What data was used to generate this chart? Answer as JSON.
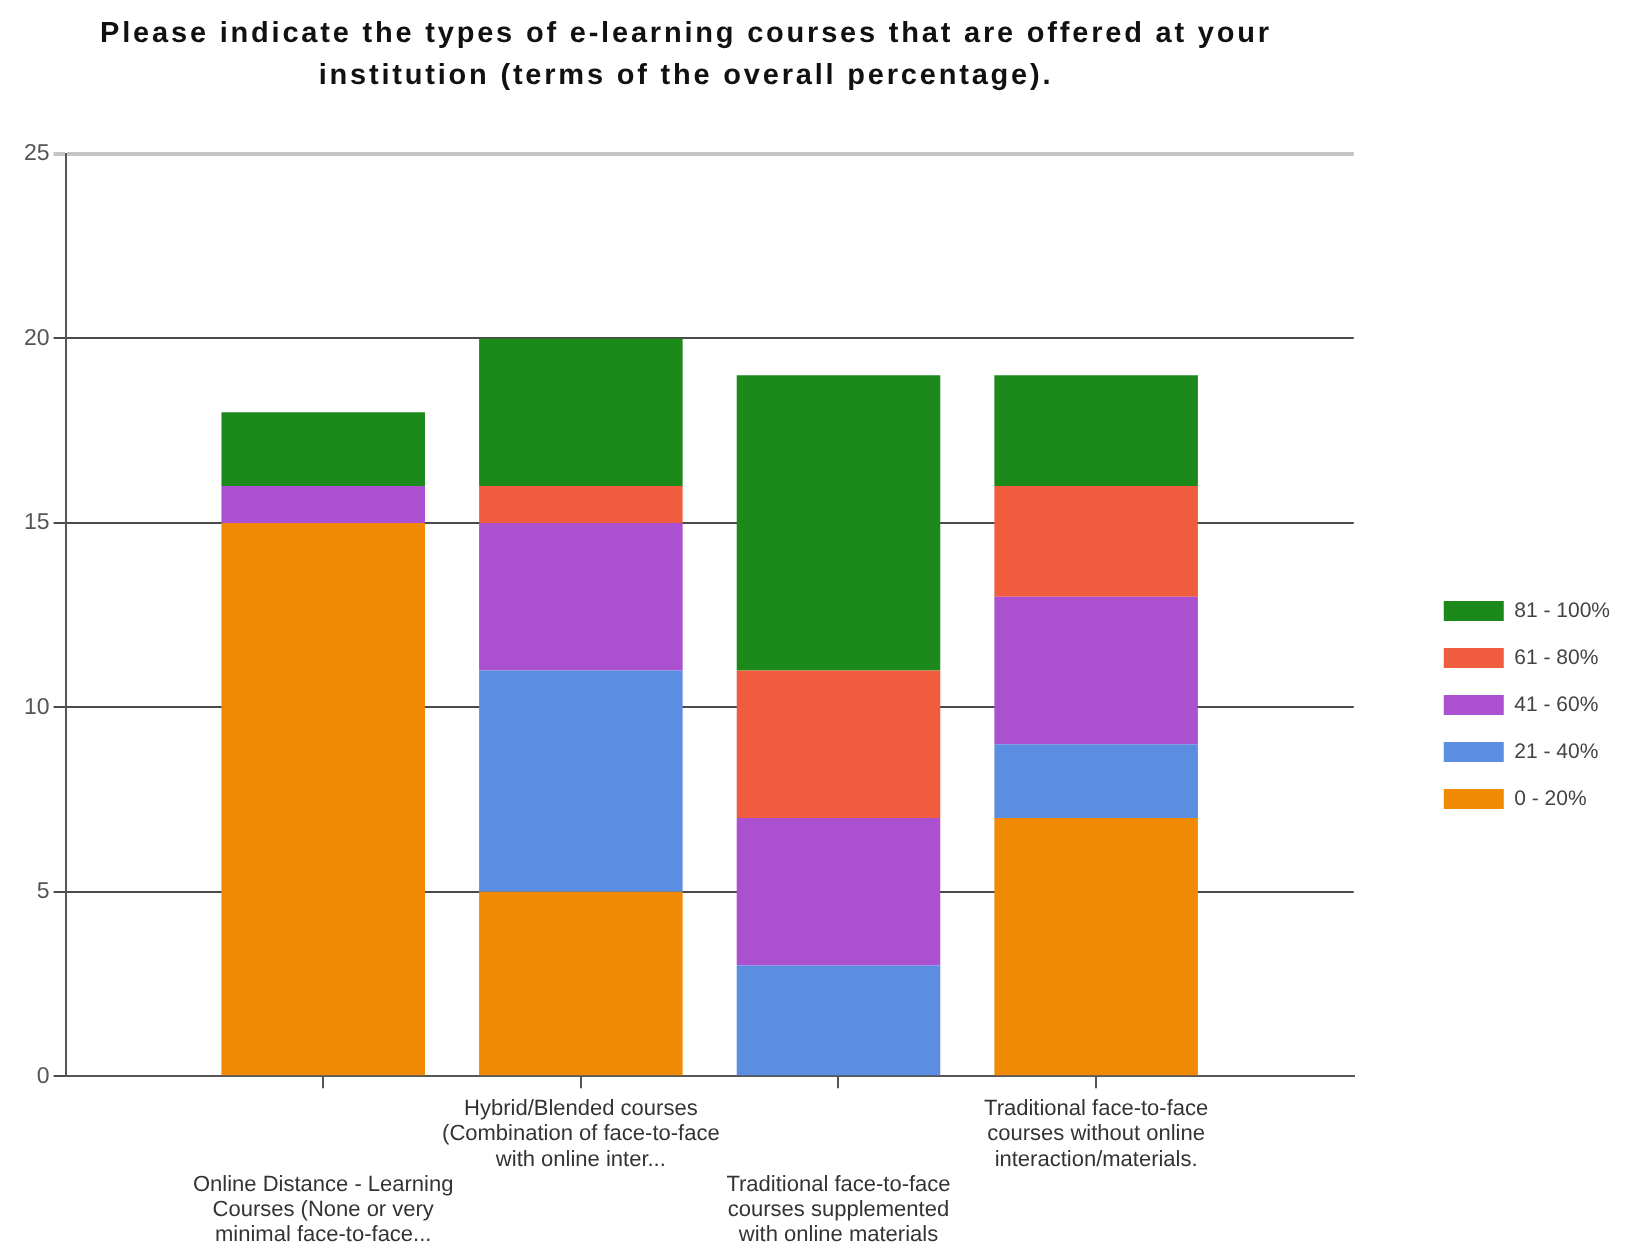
{
  "chart_data": {
    "type": "bar",
    "title": "Please indicate the types of e-learning courses that are offered at your institution (terms of the overall percentage).",
    "categories": [
      "Online Distance - Learning Courses (None or very minimal face-to-face...",
      "Hybrid/Blended courses (Combination of face-to-face with online inter...",
      "Traditional face-to-face courses supplemented with online materials",
      "Traditional face-to-face courses without online interaction/materials."
    ],
    "series": [
      {
        "name": "0 - 20%",
        "color": "#f08a05",
        "values": [
          15,
          5,
          0,
          7
        ]
      },
      {
        "name": "21 - 40%",
        "color": "#5b8de0",
        "values": [
          0,
          6,
          3,
          2
        ]
      },
      {
        "name": "41 - 60%",
        "color": "#ab50cf",
        "values": [
          1,
          4,
          4,
          4
        ]
      },
      {
        "name": "61 - 80%",
        "color": "#ef5d3e",
        "values": [
          0,
          1,
          4,
          3
        ]
      },
      {
        "name": "81 - 100%",
        "color": "#1b8a1b",
        "values": [
          2,
          4,
          8,
          3
        ]
      }
    ],
    "stacked": true,
    "ylim": [
      0,
      25
    ],
    "yticks": [
      0,
      5,
      10,
      15,
      20,
      25
    ],
    "grid": "y",
    "legend": "right"
  }
}
